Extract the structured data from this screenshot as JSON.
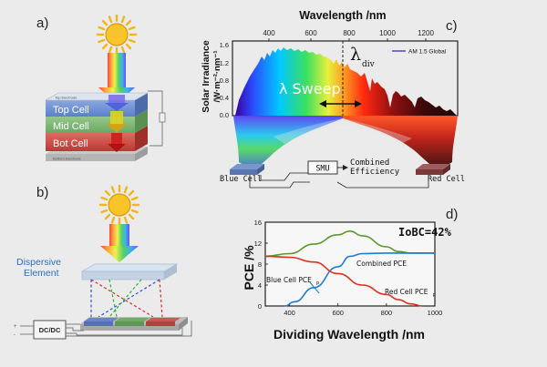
{
  "panels": {
    "a": {
      "label": "a)",
      "layers": {
        "top": "Top Cell",
        "mid": "Mid Cell",
        "bot": "Bot Cell"
      },
      "electrode_top": "Top Electrode",
      "electrode_bottom": "Bottom Electrode"
    },
    "b": {
      "label": "b)",
      "element_label_1": "Dispersive",
      "element_label_2": "Element",
      "converter_label": "DC/DC",
      "terminal_plus": "+",
      "terminal_minus": "-"
    },
    "c": {
      "label": "c)",
      "x_title": "Wavelength /nm",
      "x_ticks": [
        "400",
        "600",
        "800",
        "1000",
        "1200"
      ],
      "y_title_1": "Solar Irradiance",
      "y_title_2": "/W·m⁻²·nm⁻¹",
      "y_ticks": [
        "0.0",
        "0.4",
        "0.8",
        "1.2",
        "1.6"
      ],
      "legend": "AM 1.5 Global",
      "sweep": "λ Sweep",
      "lambda_div": "λ",
      "lambda_div_sub": "div",
      "blue_cell": "Blue Cell",
      "red_cell": "Red Cell",
      "smu": "SMU",
      "combined_1": "Combined",
      "combined_2": "Efficiency"
    },
    "d": {
      "label": "d)",
      "ylabel": "PCE /%",
      "xlabel": "Dividing Wavelength /nm",
      "badge": "IoBC=42%",
      "labels": {
        "combined": "Combined PCE",
        "blue": "Blue Cell PCE",
        "blue_sub": "p",
        "red": "Red Cell PCE",
        "red_sub": "p"
      }
    }
  },
  "colors": {
    "background": "#ebebeb",
    "sun": "#f4b51a",
    "top_cell": "#6c8fd0",
    "mid_cell": "#7bb373",
    "bot_cell": "#cc4a44",
    "combined_line": "#5a9a2a",
    "blue_line": "#1a7bd8",
    "red_line": "#e03020"
  },
  "chart_data": {
    "type": "line",
    "xlabel": "Dividing Wavelength /nm",
    "ylabel": "PCE /%",
    "xlim": [
      300,
      1000
    ],
    "ylim": [
      0,
      16
    ],
    "x_ticks": [
      400,
      600,
      800,
      1000
    ],
    "y_ticks": [
      0,
      4,
      8,
      12,
      16
    ],
    "series": [
      {
        "name": "Combined PCE",
        "color": "#5a9a2a",
        "x": [
          300,
          400,
          500,
          600,
          650,
          700,
          800,
          850,
          900,
          1000
        ],
        "y": [
          9.5,
          10.0,
          11.8,
          13.6,
          14.3,
          13.4,
          11.3,
          10.4,
          10.1,
          10.1
        ]
      },
      {
        "name": "Blue Cell PCE",
        "color": "#1a7bd8",
        "x": [
          380,
          420,
          500,
          600,
          650,
          700,
          800,
          900,
          1000
        ],
        "y": [
          0.0,
          0.8,
          3.5,
          7.5,
          9.5,
          10.0,
          10.1,
          10.1,
          10.1
        ]
      },
      {
        "name": "Red Cell PCE",
        "color": "#e03020",
        "x": [
          300,
          400,
          500,
          600,
          700,
          800,
          850,
          900,
          950
        ],
        "y": [
          9.5,
          9.3,
          8.4,
          6.2,
          4.0,
          2.2,
          1.2,
          0.4,
          0.0
        ]
      }
    ]
  }
}
